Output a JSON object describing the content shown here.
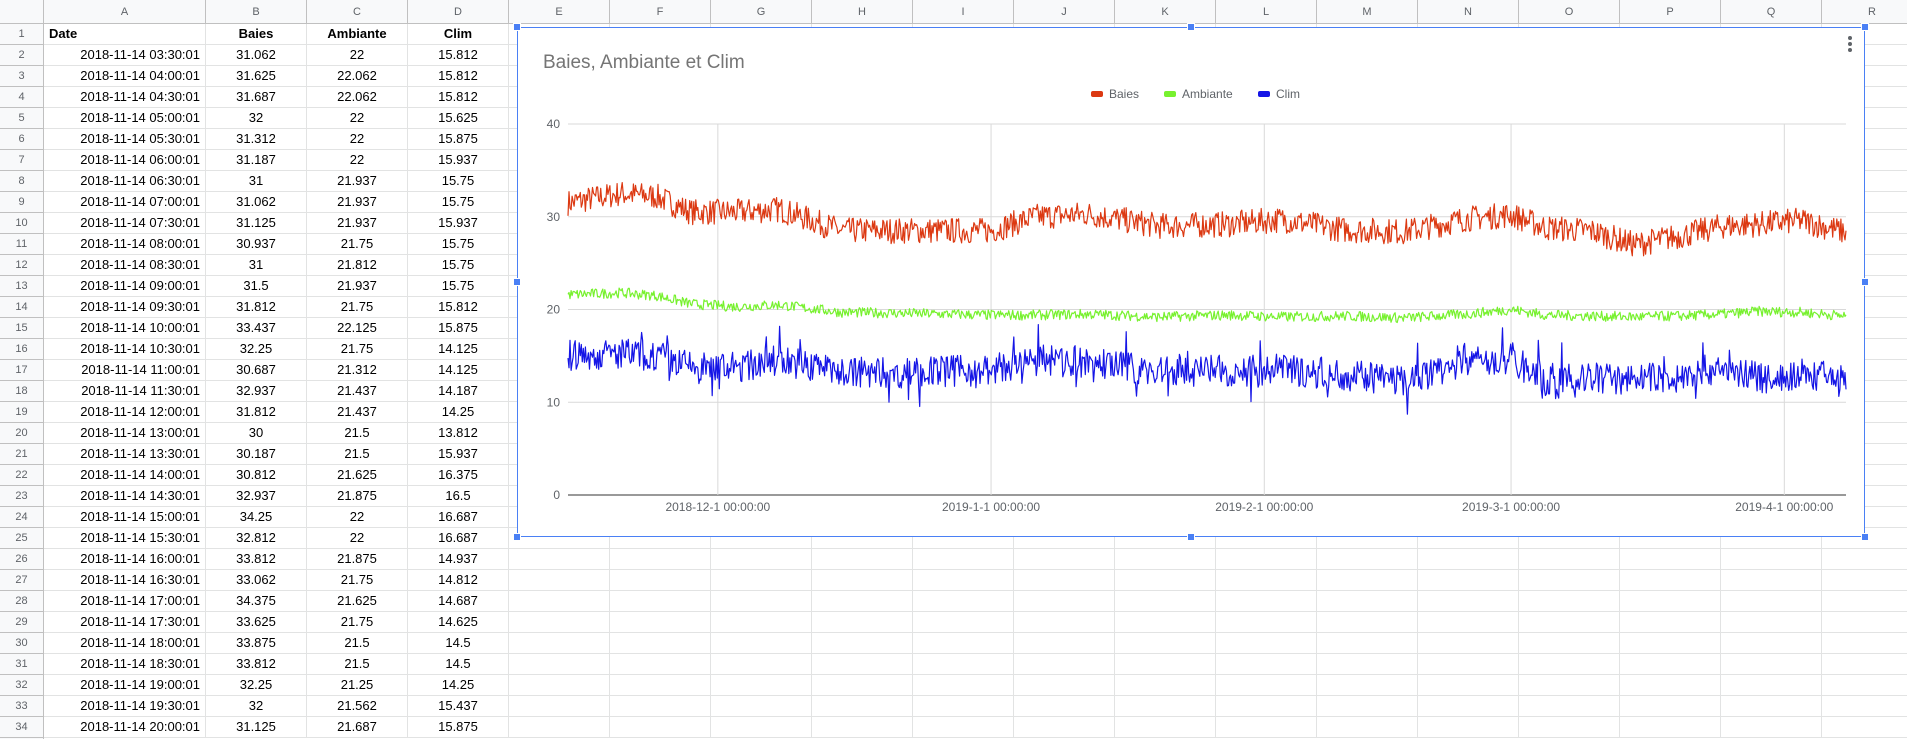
{
  "columns": [
    "A",
    "B",
    "C",
    "D",
    "E",
    "F",
    "G",
    "H",
    "I",
    "J",
    "K",
    "L",
    "M",
    "N",
    "O",
    "P",
    "Q",
    "R"
  ],
  "header_row": {
    "date": "Date",
    "baies": "Baies",
    "ambiante": "Ambiante",
    "clim": "Clim"
  },
  "rows": [
    {
      "date": "2018-11-14 03:30:01",
      "baies": "31.062",
      "ambiante": "22",
      "clim": "15.812"
    },
    {
      "date": "2018-11-14 04:00:01",
      "baies": "31.625",
      "ambiante": "22.062",
      "clim": "15.812"
    },
    {
      "date": "2018-11-14 04:30:01",
      "baies": "31.687",
      "ambiante": "22.062",
      "clim": "15.812"
    },
    {
      "date": "2018-11-14 05:00:01",
      "baies": "32",
      "ambiante": "22",
      "clim": "15.625"
    },
    {
      "date": "2018-11-14 05:30:01",
      "baies": "31.312",
      "ambiante": "22",
      "clim": "15.875"
    },
    {
      "date": "2018-11-14 06:00:01",
      "baies": "31.187",
      "ambiante": "22",
      "clim": "15.937"
    },
    {
      "date": "2018-11-14 06:30:01",
      "baies": "31",
      "ambiante": "21.937",
      "clim": "15.75"
    },
    {
      "date": "2018-11-14 07:00:01",
      "baies": "31.062",
      "ambiante": "21.937",
      "clim": "15.75"
    },
    {
      "date": "2018-11-14 07:30:01",
      "baies": "31.125",
      "ambiante": "21.937",
      "clim": "15.937"
    },
    {
      "date": "2018-11-14 08:00:01",
      "baies": "30.937",
      "ambiante": "21.75",
      "clim": "15.75"
    },
    {
      "date": "2018-11-14 08:30:01",
      "baies": "31",
      "ambiante": "21.812",
      "clim": "15.75"
    },
    {
      "date": "2018-11-14 09:00:01",
      "baies": "31.5",
      "ambiante": "21.937",
      "clim": "15.75"
    },
    {
      "date": "2018-11-14 09:30:01",
      "baies": "31.812",
      "ambiante": "21.75",
      "clim": "15.812"
    },
    {
      "date": "2018-11-14 10:00:01",
      "baies": "33.437",
      "ambiante": "22.125",
      "clim": "15.875"
    },
    {
      "date": "2018-11-14 10:30:01",
      "baies": "32.25",
      "ambiante": "21.75",
      "clim": "14.125"
    },
    {
      "date": "2018-11-14 11:00:01",
      "baies": "30.687",
      "ambiante": "21.312",
      "clim": "14.125"
    },
    {
      "date": "2018-11-14 11:30:01",
      "baies": "32.937",
      "ambiante": "21.437",
      "clim": "14.187"
    },
    {
      "date": "2018-11-14 12:00:01",
      "baies": "31.812",
      "ambiante": "21.437",
      "clim": "14.25"
    },
    {
      "date": "2018-11-14 13:00:01",
      "baies": "30",
      "ambiante": "21.5",
      "clim": "13.812"
    },
    {
      "date": "2018-11-14 13:30:01",
      "baies": "30.187",
      "ambiante": "21.5",
      "clim": "15.937"
    },
    {
      "date": "2018-11-14 14:00:01",
      "baies": "30.812",
      "ambiante": "21.625",
      "clim": "16.375"
    },
    {
      "date": "2018-11-14 14:30:01",
      "baies": "32.937",
      "ambiante": "21.875",
      "clim": "16.5"
    },
    {
      "date": "2018-11-14 15:00:01",
      "baies": "34.25",
      "ambiante": "22",
      "clim": "16.687"
    },
    {
      "date": "2018-11-14 15:30:01",
      "baies": "32.812",
      "ambiante": "22",
      "clim": "16.687"
    },
    {
      "date": "2018-11-14 16:00:01",
      "baies": "33.812",
      "ambiante": "21.875",
      "clim": "14.937"
    },
    {
      "date": "2018-11-14 16:30:01",
      "baies": "33.062",
      "ambiante": "21.75",
      "clim": "14.812"
    },
    {
      "date": "2018-11-14 17:00:01",
      "baies": "34.375",
      "ambiante": "21.625",
      "clim": "14.687"
    },
    {
      "date": "2018-11-14 17:30:01",
      "baies": "33.625",
      "ambiante": "21.75",
      "clim": "14.625"
    },
    {
      "date": "2018-11-14 18:00:01",
      "baies": "33.875",
      "ambiante": "21.5",
      "clim": "14.5"
    },
    {
      "date": "2018-11-14 18:30:01",
      "baies": "33.812",
      "ambiante": "21.5",
      "clim": "14.5"
    },
    {
      "date": "2018-11-14 19:00:01",
      "baies": "32.25",
      "ambiante": "21.25",
      "clim": "14.25"
    },
    {
      "date": "2018-11-14 19:30:01",
      "baies": "32",
      "ambiante": "21.562",
      "clim": "15.437"
    },
    {
      "date": "2018-11-14 20:00:01",
      "baies": "31.125",
      "ambiante": "21.687",
      "clim": "15.875"
    }
  ],
  "chart_data": {
    "type": "line",
    "title": "Baies, Ambiante et Clim",
    "xlabel": "",
    "ylabel": "",
    "ylim": [
      0,
      40
    ],
    "yticks": [
      0,
      10,
      20,
      30,
      40
    ],
    "x_ticks": [
      "2018-12-1 00:00:00",
      "2019-1-1 00:00:00",
      "2019-2-1 00:00:00",
      "2019-3-1 00:00:00",
      "2019-4-1 00:00:00"
    ],
    "xlim": [
      "2018-11-14",
      "2019-4-8"
    ],
    "legend_position": "top",
    "grid": true,
    "series": [
      {
        "name": "Baies",
        "color": "#dc3912",
        "x": [
          "2018-11-14",
          "2018-11-20",
          "2018-11-24",
          "2018-11-28",
          "2018-12-3",
          "2018-12-8",
          "2018-12-15",
          "2018-12-22",
          "2019-1-1",
          "2019-1-6",
          "2019-1-12",
          "2019-1-20",
          "2019-1-28",
          "2019-2-3",
          "2019-2-10",
          "2019-2-17",
          "2019-2-24",
          "2019-3-1",
          "2019-3-5",
          "2019-3-10",
          "2019-3-15",
          "2019-3-20",
          "2019-3-25",
          "2019-3-29",
          "2019-4-3",
          "2019-4-8"
        ],
        "values": [
          31.5,
          32.5,
          32.2,
          30.5,
          30.5,
          30.8,
          28.5,
          28.5,
          28.5,
          30.0,
          30.3,
          29.0,
          29.2,
          29.7,
          28.6,
          28.4,
          29.8,
          30.2,
          28.8,
          28.5,
          27.0,
          27.9,
          29.0,
          29.2,
          29.6,
          28.3
        ]
      },
      {
        "name": "Ambiante",
        "color": "#77f12e",
        "x": [
          "2018-11-14",
          "2018-11-20",
          "2018-11-24",
          "2018-11-28",
          "2018-12-3",
          "2018-12-8",
          "2018-12-15",
          "2018-12-22",
          "2019-1-1",
          "2019-1-6",
          "2019-1-12",
          "2019-1-20",
          "2019-1-28",
          "2019-2-3",
          "2019-2-10",
          "2019-2-17",
          "2019-2-24",
          "2019-3-1",
          "2019-3-5",
          "2019-3-10",
          "2019-3-15",
          "2019-3-20",
          "2019-3-25",
          "2019-3-29",
          "2019-4-3",
          "2019-4-8"
        ],
        "values": [
          21.6,
          21.8,
          21.5,
          20.6,
          20.3,
          20.5,
          19.7,
          19.6,
          19.4,
          19.4,
          19.5,
          19.2,
          19.4,
          19.2,
          19.3,
          19.1,
          19.5,
          20.0,
          19.4,
          19.3,
          19.2,
          19.3,
          19.5,
          19.8,
          19.7,
          19.3
        ]
      },
      {
        "name": "Clim",
        "color": "#1515e6",
        "x": [
          "2018-11-14",
          "2018-11-20",
          "2018-11-24",
          "2018-11-28",
          "2018-12-3",
          "2018-12-8",
          "2018-12-15",
          "2018-12-22",
          "2019-1-1",
          "2019-1-6",
          "2019-1-12",
          "2019-1-20",
          "2019-1-28",
          "2019-2-3",
          "2019-2-10",
          "2019-2-17",
          "2019-2-24",
          "2019-3-1",
          "2019-3-5",
          "2019-3-10",
          "2019-3-15",
          "2019-3-20",
          "2019-3-25",
          "2019-3-29",
          "2019-4-3",
          "2019-4-8"
        ],
        "values": [
          15.0,
          15.2,
          15.0,
          13.8,
          13.7,
          14.6,
          13.3,
          13.2,
          13.5,
          14.5,
          14.3,
          13.3,
          13.4,
          13.5,
          13.0,
          12.3,
          14.5,
          14.6,
          12.5,
          12.6,
          12.5,
          12.8,
          13.8,
          12.6,
          13.0,
          12.5
        ]
      }
    ]
  }
}
